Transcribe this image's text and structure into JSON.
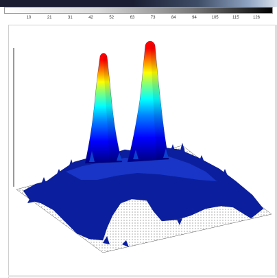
{
  "colorbar": {
    "ticks": [
      "10",
      "21",
      "31",
      "42",
      "52",
      "63",
      "73",
      "84",
      "94",
      "105",
      "115",
      "126"
    ]
  },
  "colors": {
    "colormap": [
      "#00007f",
      "#0000ff",
      "#007fff",
      "#00ffff",
      "#7fff7f",
      "#ffff00",
      "#ff7f00",
      "#ff0000",
      "#7f0000"
    ],
    "floor_dots": "#333333",
    "base_surface": "#0b1f9e"
  },
  "chart_data": {
    "type": "surface",
    "title": "",
    "xlabel": "",
    "ylabel": "",
    "zlabel": "",
    "colormap": "jet",
    "grid": false,
    "legend": "none",
    "peaks": [
      {
        "x": 0.35,
        "y": 0.55,
        "height": 1.0
      },
      {
        "x": 0.55,
        "y": 0.55,
        "height": 1.0
      }
    ]
  }
}
